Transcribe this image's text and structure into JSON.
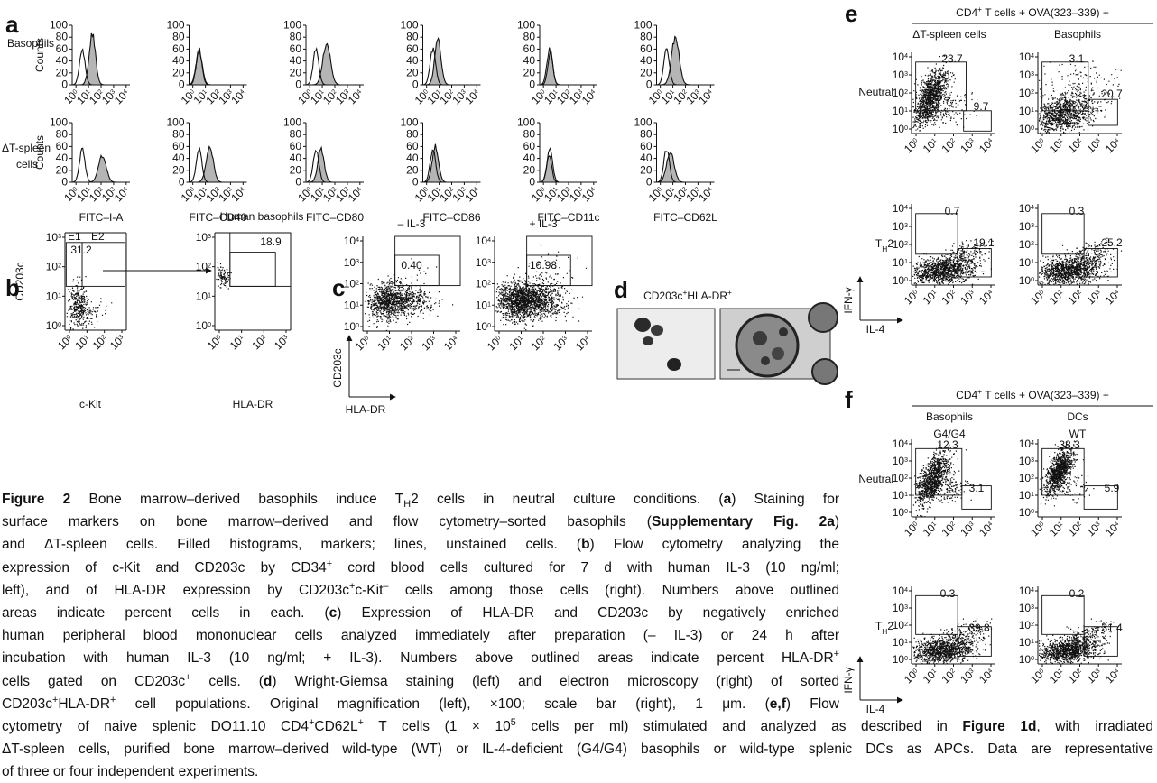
{
  "panel_a": {
    "letter": "a",
    "basophils_label": "Basophils",
    "spleen_label_lines": [
      "ΔT-spleen",
      "cells"
    ],
    "y_label": "Counts",
    "y_ticks": [
      "100",
      "80",
      "60",
      "40",
      "20",
      "0"
    ],
    "tick_base": "10",
    "tick_exponents": [
      "0",
      "1",
      "2",
      "3",
      "4"
    ],
    "x_labels": [
      "FITC–I-A",
      "FITC–CD40",
      "FITC–CD80",
      "FITC–CD86",
      "FITC–CD11c",
      "FITC–CD62L"
    ]
  },
  "panel_b": {
    "letter": "b",
    "y_label": "CD203c",
    "tick_base": "10",
    "tick_exponents": [
      "0",
      "1",
      "2",
      "3"
    ],
    "gate_labels": [
      "E1",
      "E2"
    ],
    "left_value": "31.2",
    "right_title": "Human basophils",
    "right_value": "18.9",
    "x_labels": [
      "c-Kit",
      "HLA-DR"
    ]
  },
  "panel_c": {
    "letter": "c",
    "titles": [
      "– IL-3",
      "+ IL-3"
    ],
    "values": [
      "0.40",
      "10.98"
    ],
    "tick_base": "10",
    "tick_exponents": [
      "0",
      "1",
      "2",
      "3",
      "4"
    ],
    "y_label": "CD203c",
    "x_label": "HLA-DR"
  },
  "panel_d": {
    "letter": "d",
    "title": [
      "CD203c",
      {
        "text": "+",
        "style": "sup"
      },
      "HLA-DR",
      {
        "text": "+",
        "style": "sup"
      }
    ]
  },
  "panel_e": {
    "letter": "e",
    "header": [
      "CD4",
      {
        "text": "+",
        "style": "sup"
      },
      " T cells + OVA(323–339) +"
    ],
    "column_titles": [
      "ΔT-spleen cells",
      "Basophils"
    ],
    "row_labels": [
      "Neutral",
      [
        "T",
        {
          "text": "H",
          "style": "sub"
        },
        "2"
      ]
    ],
    "values": [
      [
        "23.7",
        "9.7",
        "3.1",
        "20.7"
      ],
      [
        "0.7",
        "19.1",
        "0.3",
        "25.2"
      ]
    ],
    "tick_base": "10",
    "tick_exponents": [
      "0",
      "1",
      "2",
      "3",
      "4"
    ],
    "y_label": "IFN-γ",
    "x_label": "IL-4"
  },
  "panel_f": {
    "letter": "f",
    "header": [
      "CD4",
      {
        "text": "+",
        "style": "sup"
      },
      " T cells + OVA(323–339) +"
    ],
    "column_titles": [
      "Basophils",
      "DCs"
    ],
    "genotypes": [
      "G4/G4",
      "WT"
    ],
    "row_labels": [
      "Neutral",
      [
        "T",
        {
          "text": "H",
          "style": "sub"
        },
        "2"
      ]
    ],
    "values": [
      [
        "12.3",
        "3.1",
        "38.3",
        "5.9"
      ],
      [
        "0.3",
        "39.8",
        "0.2",
        "31.4"
      ]
    ],
    "tick_base": "10",
    "tick_exponents": [
      "0",
      "1",
      "2",
      "3",
      "4"
    ],
    "y_label": "IFN-γ",
    "x_label": "IL-4"
  },
  "caption": {
    "lines": [
      [
        {
          "text": "Figure 2",
          "style": "bold"
        },
        " Bone marrow–derived basophils induce T",
        {
          "text": "H",
          "style": "sub"
        },
        "2 cells in neutral culture conditions. (",
        {
          "text": "a",
          "style": "bold"
        },
        ") Staining for"
      ],
      [
        "surface markers on bone marrow–derived and flow cytometry–sorted basophils (",
        {
          "text": "Supplementary Fig. 2a",
          "style": "bold"
        },
        ")"
      ],
      [
        "and ΔT-spleen cells. Filled histograms, markers; lines, unstained cells. (",
        {
          "text": "b",
          "style": "bold"
        },
        ") Flow cytometry analyzing the"
      ],
      [
        "expression of c-Kit and CD203c by CD34",
        {
          "text": "+",
          "style": "sup"
        },
        " cord blood cells cultured for 7 d with human IL-3 (10 ng/ml;"
      ],
      [
        "left), and of HLA-DR expression by CD203c",
        {
          "text": "+",
          "style": "sup"
        },
        "c-Kit",
        {
          "text": "–",
          "style": "sup"
        },
        " cells among those cells (right). Numbers above outlined"
      ],
      [
        "areas indicate percent cells in each. (",
        {
          "text": "c",
          "style": "bold"
        },
        ") Expression of HLA-DR and CD203c by negatively enriched"
      ],
      [
        "human peripheral blood mononuclear cells analyzed immediately after preparation (– IL-3) or 24 h after"
      ],
      [
        "incubation with human IL-3 (10 ng/ml; + IL-3). Numbers above outlined areas indicate percent HLA-DR",
        {
          "text": "+",
          "style": "sup"
        }
      ],
      [
        "cells gated on CD203c",
        {
          "text": "+",
          "style": "sup"
        },
        " cells. (",
        {
          "text": "d",
          "style": "bold"
        },
        ") Wright-Giemsa staining (left) and electron microscopy (right) of sorted"
      ],
      [
        "CD203c",
        {
          "text": "+",
          "style": "sup"
        },
        "HLA-DR",
        {
          "text": "+",
          "style": "sup"
        },
        " cell populations. Original magnification (left), ×100; scale bar (right), 1 μm. (",
        {
          "text": "e,f",
          "style": "bold"
        },
        ") Flow"
      ],
      [
        "cytometry of naive splenic DO11.10 CD4",
        {
          "text": "+",
          "style": "sup"
        },
        "CD62L",
        {
          "text": "+",
          "style": "sup"
        },
        " T cells (1 × 10",
        {
          "text": "5",
          "style": "sup"
        },
        " cells per ml) stimulated and analyzed as described in ",
        {
          "text": "Figure 1d",
          "style": "bold"
        },
        ", with irradiated"
      ],
      [
        "ΔT-spleen cells, purified bone marrow–derived wild-type (WT) or IL-4-deficient (G4/G4) basophils or wild-type splenic DCs as APCs. Data are representative"
      ],
      [
        "of three or four independent experiments."
      ]
    ]
  }
}
